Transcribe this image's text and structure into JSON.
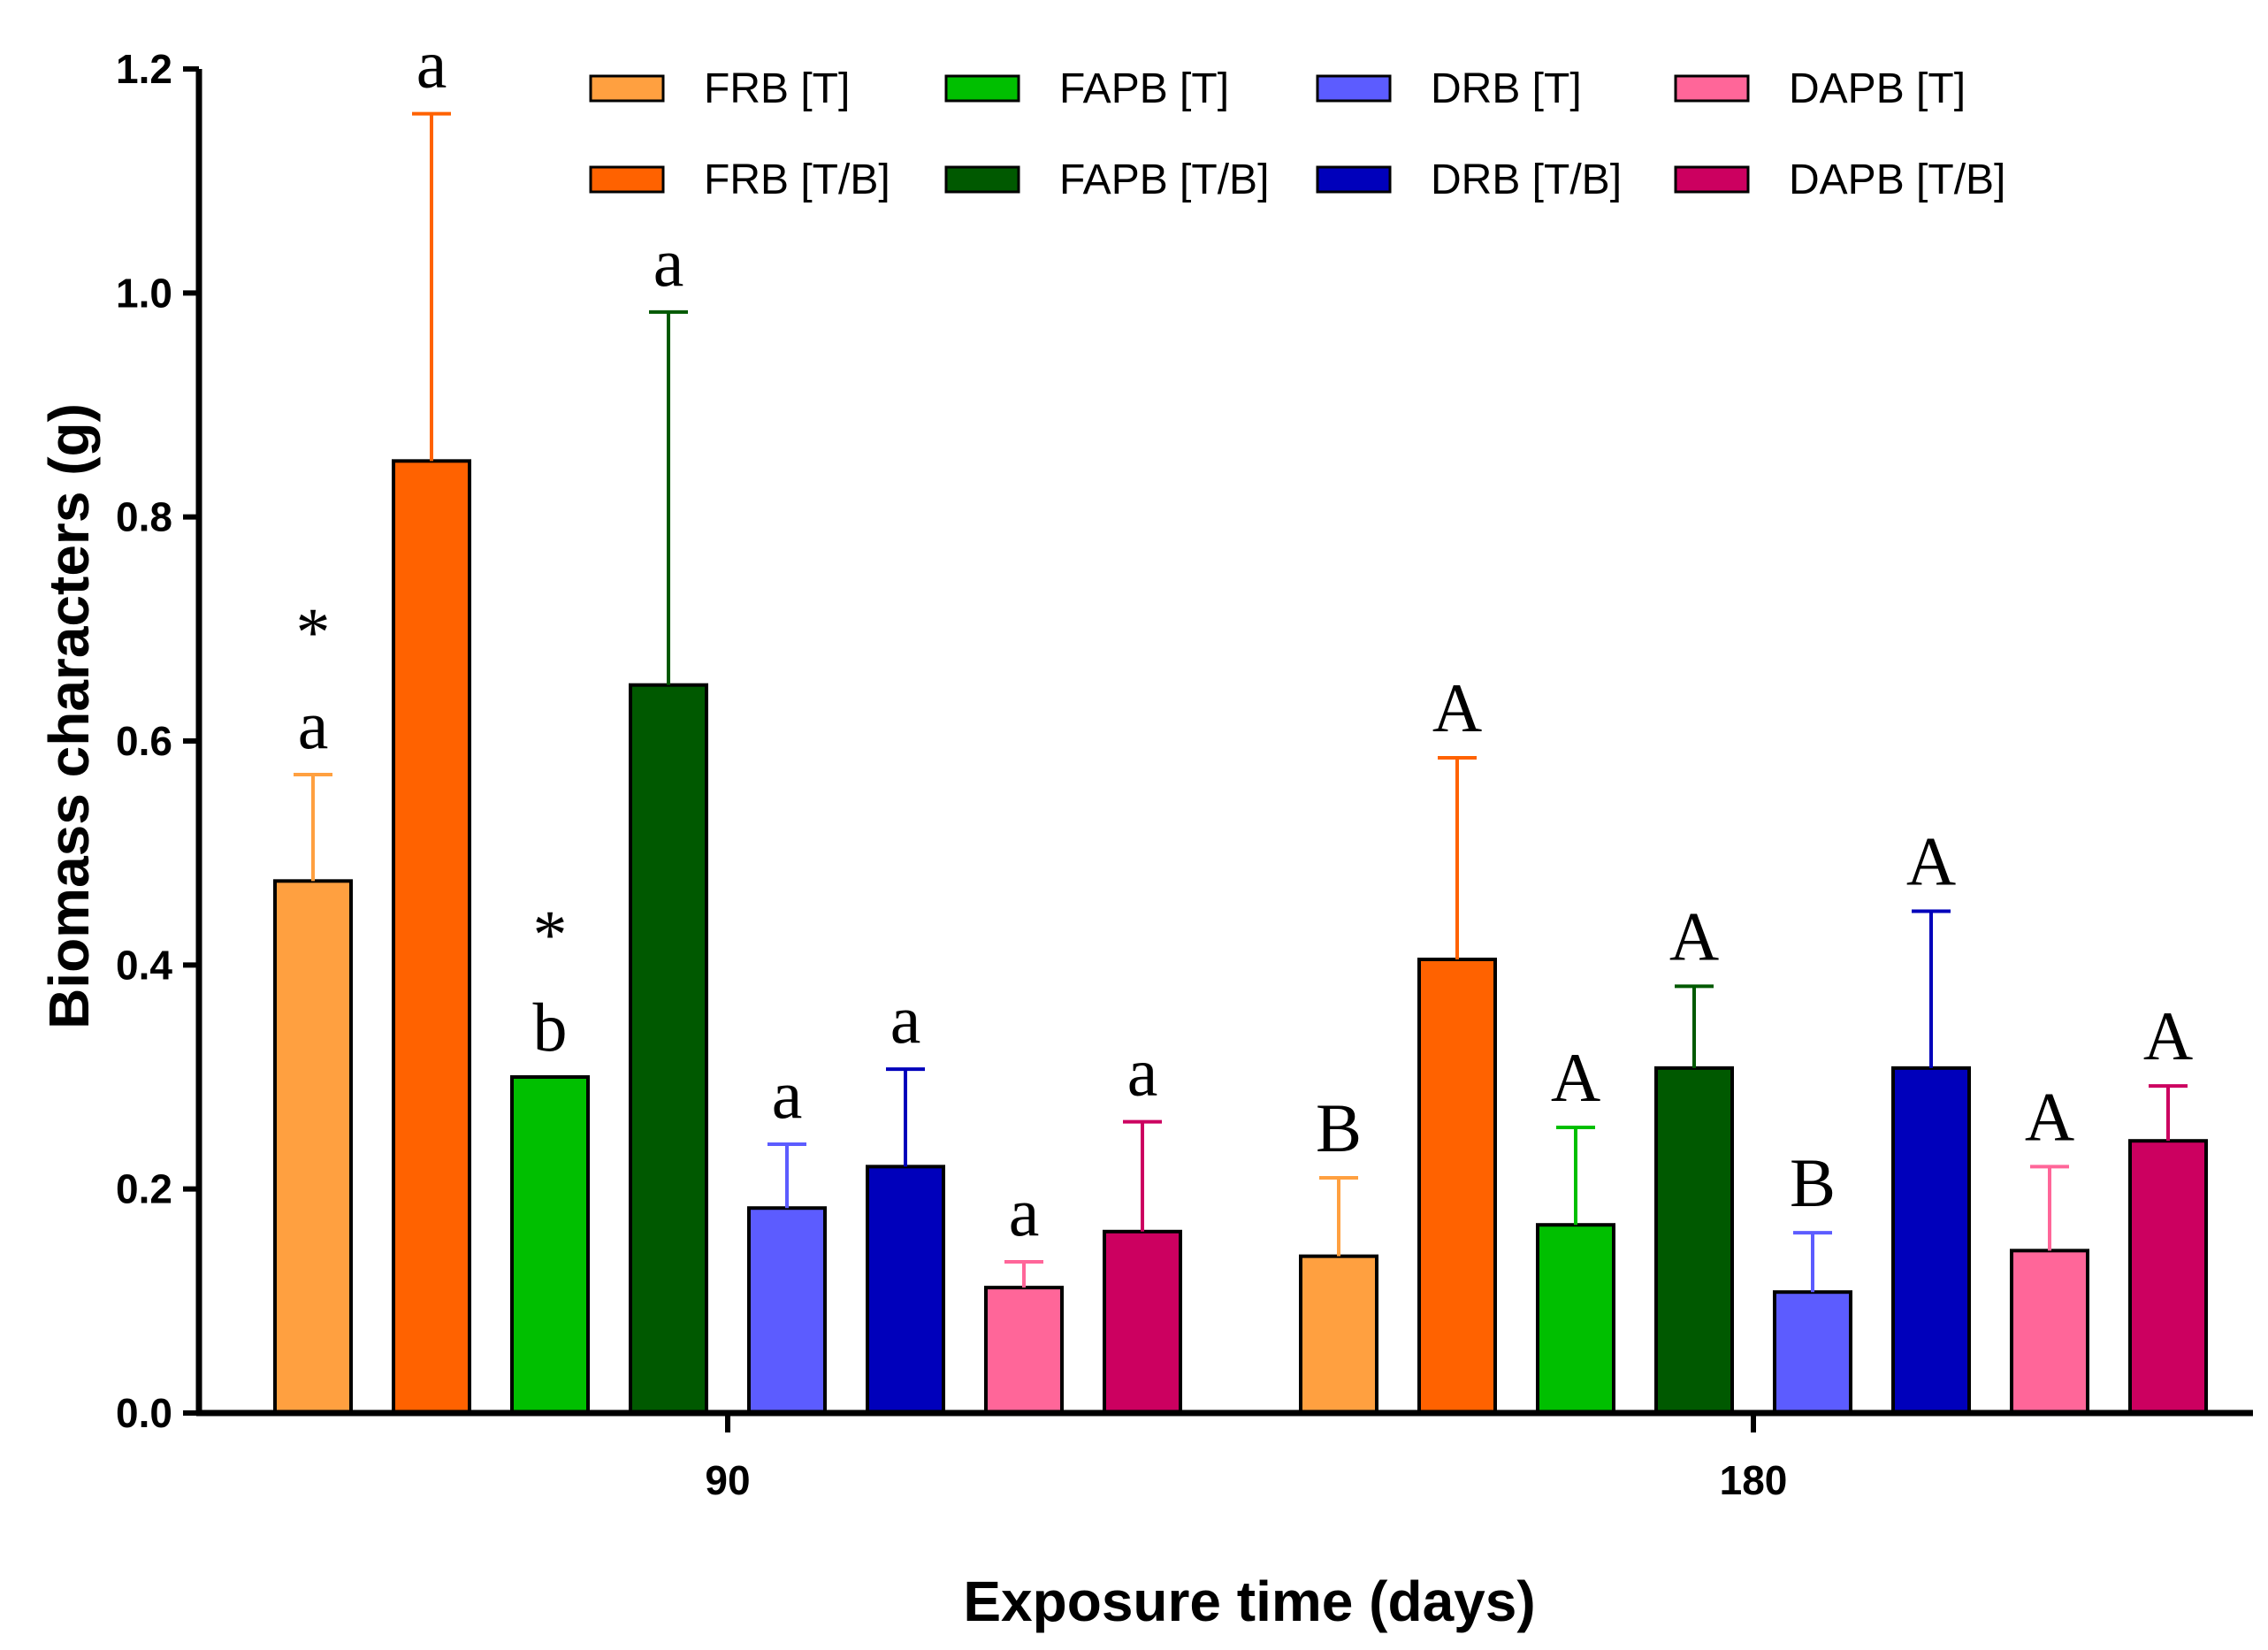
{
  "chart_data": {
    "type": "bar",
    "ylabel": "Biomass characters (g)",
    "xlabel": "Exposure time (days)",
    "ylim": [
      0,
      1.2
    ],
    "yticks": [
      "0.0",
      "0.2",
      "0.4",
      "0.6",
      "0.8",
      "1.0",
      "1.2"
    ],
    "categories": [
      "90",
      "180"
    ],
    "grid": false,
    "legend_position": "top",
    "series": [
      {
        "name": "FRB [T]",
        "color": "#FFA040",
        "values": [
          0.475,
          0.14
        ],
        "errors": [
          0.095,
          0.07
        ],
        "labels": [
          "a",
          "B"
        ],
        "markers": [
          "*",
          ""
        ]
      },
      {
        "name": "FRB [T/B]",
        "color": "#FF6200",
        "values": [
          0.85,
          0.405
        ],
        "errors": [
          0.31,
          0.18
        ],
        "labels": [
          "a",
          "A"
        ],
        "markers": [
          "",
          ""
        ]
      },
      {
        "name": "FAPB [T]",
        "color": "#00BF00",
        "values": [
          0.3,
          0.168
        ],
        "errors": [
          0.0,
          0.087
        ],
        "labels": [
          "b",
          "A"
        ],
        "markers": [
          "*",
          ""
        ]
      },
      {
        "name": "FAPB [T/B]",
        "color": "#005900",
        "values": [
          0.65,
          0.308
        ],
        "errors": [
          0.333,
          0.073
        ],
        "labels": [
          "a",
          "A"
        ],
        "markers": [
          "",
          ""
        ]
      },
      {
        "name": "DRB [T]",
        "color": "#5C5CFF",
        "values": [
          0.183,
          0.108
        ],
        "errors": [
          0.057,
          0.053
        ],
        "labels": [
          "a",
          "B"
        ],
        "markers": [
          "",
          ""
        ]
      },
      {
        "name": "DRB [T/B]",
        "color": "#0000BB",
        "values": [
          0.22,
          0.308
        ],
        "errors": [
          0.087,
          0.14
        ],
        "labels": [
          "a",
          "A"
        ],
        "markers": [
          "",
          ""
        ]
      },
      {
        "name": "DAPB [T]",
        "color": "#FF6699",
        "values": [
          0.112,
          0.145
        ],
        "errors": [
          0.023,
          0.075
        ],
        "labels": [
          "a",
          "A"
        ],
        "markers": [
          "",
          ""
        ]
      },
      {
        "name": "DAPB [T/B]",
        "color": "#CC0060",
        "values": [
          0.162,
          0.243
        ],
        "errors": [
          0.098,
          0.049
        ],
        "labels": [
          "a",
          "A"
        ],
        "markers": [
          "",
          ""
        ]
      }
    ]
  }
}
